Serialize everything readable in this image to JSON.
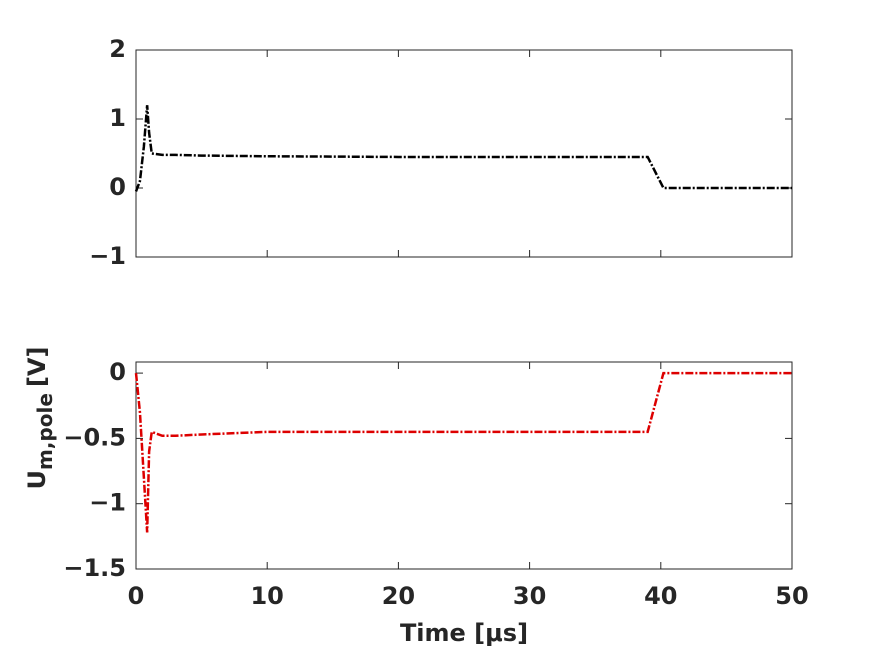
{
  "chart_data": [
    {
      "type": "line",
      "x": [
        0,
        0.3,
        0.6,
        0.85,
        1.0,
        1.2,
        2,
        3,
        5,
        10,
        20,
        30,
        39,
        40.2,
        45,
        50
      ],
      "series": [
        {
          "color": "#000000",
          "values": [
            -0.05,
            0.1,
            0.6,
            1.2,
            0.8,
            0.5,
            0.48,
            0.48,
            0.47,
            0.46,
            0.45,
            0.45,
            0.45,
            0,
            0,
            0
          ]
        }
      ],
      "xlim": [
        0,
        50
      ],
      "xticks": [
        0,
        10,
        20,
        30,
        40,
        50
      ],
      "xtick_labels": false,
      "ylim": [
        -1,
        2
      ],
      "yticks": [
        {
          "value": -1,
          "label": "−1"
        },
        0,
        1,
        2
      ]
    },
    {
      "type": "line",
      "x": [
        0,
        0.3,
        0.6,
        0.85,
        1.0,
        1.2,
        2,
        3,
        5,
        10,
        20,
        30,
        39,
        40.2,
        45,
        50
      ],
      "series": [
        {
          "color": "#dd0000",
          "values": [
            0,
            -0.3,
            -0.8,
            -1.22,
            -0.6,
            -0.45,
            -0.48,
            -0.48,
            -0.47,
            -0.45,
            -0.45,
            -0.45,
            -0.45,
            0,
            0,
            0
          ]
        }
      ],
      "xlim": [
        0,
        50
      ],
      "xticks": [
        0,
        10,
        20,
        30,
        40,
        50
      ],
      "xtick_labels": true,
      "ylim": [
        -1.5,
        0.085
      ],
      "yticks": [
        {
          "value": -1.5,
          "label": "−1.5"
        },
        {
          "value": -1,
          "label": "−1"
        },
        {
          "value": -0.5,
          "label": "−0.5"
        },
        0
      ],
      "xlabel": "Time [μs]",
      "ylabel": "U",
      "ylabel_sub": "m,pole",
      "ylabel_unit": "[V]"
    }
  ]
}
